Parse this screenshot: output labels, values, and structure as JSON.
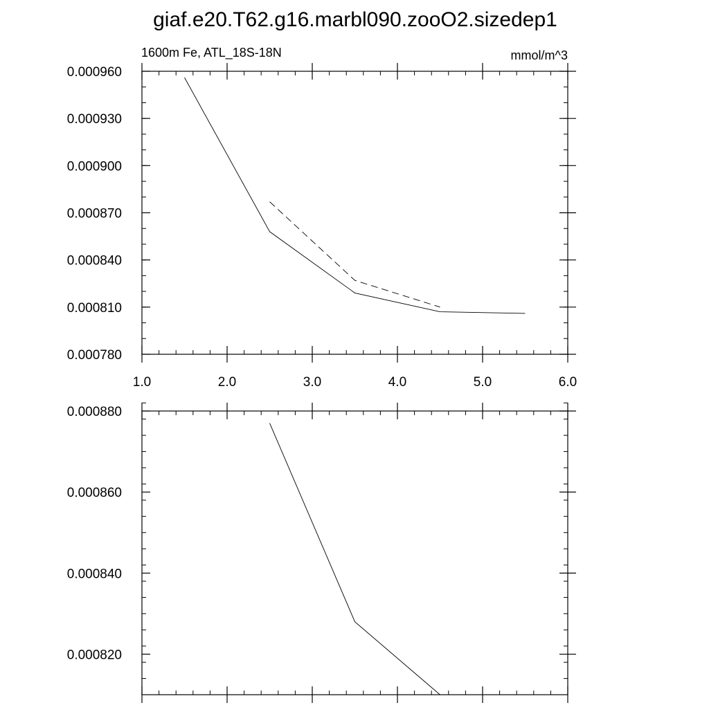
{
  "title": "giaf.e20.T62.g16.marbl090.zooO2.sizedep1",
  "chart_data": [
    {
      "type": "line",
      "left_label": "1600m Fe, ATL_18S-18N",
      "right_label": "mmol/m^3",
      "xlim": [
        1.0,
        6.0
      ],
      "ylim": [
        0.00078,
        0.00096
      ],
      "x_ticks": [
        1.0,
        2.0,
        3.0,
        4.0,
        5.0,
        6.0
      ],
      "x_tick_labels": [
        "1.0",
        "2.0",
        "3.0",
        "4.0",
        "5.0",
        "6.0"
      ],
      "y_ticks": [
        0.00078,
        0.00081,
        0.00084,
        0.00087,
        0.0009,
        0.00093,
        0.00096
      ],
      "y_tick_labels": [
        "0.000780",
        "0.000810",
        "0.000840",
        "0.000870",
        "0.000900",
        "0.000930",
        "0.000960"
      ],
      "x_minor_step": 0.2,
      "y_minor_step": 1e-05,
      "grid": false,
      "series": [
        {
          "style": "solid",
          "color": "#000000",
          "x": [
            1.5,
            2.5,
            3.5,
            4.5,
            5.5
          ],
          "y": [
            0.000956,
            0.000858,
            0.000819,
            0.000807,
            0.000806
          ]
        },
        {
          "style": "dashed",
          "color": "#000000",
          "x": [
            2.5,
            3.5,
            4.5
          ],
          "y": [
            0.000877,
            0.000827,
            0.00081
          ]
        }
      ]
    },
    {
      "type": "line",
      "xlim": [
        1.0,
        6.0
      ],
      "ylim": [
        0.00081,
        0.00088
      ],
      "x_ticks": [
        1.0,
        2.0,
        3.0,
        4.0,
        5.0,
        6.0
      ],
      "x_tick_labels": [],
      "y_ticks": [
        0.00082,
        0.00084,
        0.00086,
        0.00088
      ],
      "y_tick_labels": [
        "0.000820",
        "0.000840",
        "0.000860",
        "0.000880"
      ],
      "x_minor_step": 0.2,
      "y_minor_step": 4e-06,
      "grid": false,
      "series": [
        {
          "style": "solid",
          "color": "#000000",
          "x": [
            2.5,
            3.5,
            4.5
          ],
          "y": [
            0.000877,
            0.000828,
            0.00081
          ]
        }
      ]
    }
  ]
}
